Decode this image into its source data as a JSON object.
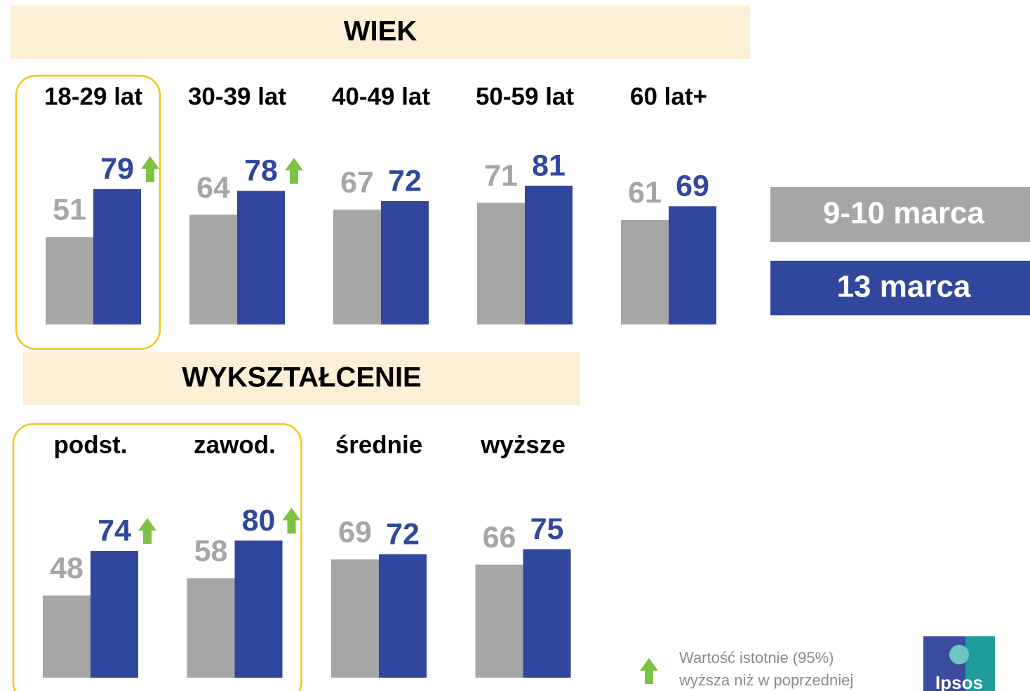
{
  "chart_data": [
    {
      "type": "bar",
      "title": "WIEK",
      "categories": [
        "18-29 lat",
        "30-39 lat",
        "40-49 lat",
        "50-59 lat",
        "60 lat+"
      ],
      "series": [
        {
          "name": "9-10 marca",
          "color": "#a6a6a6",
          "values": [
            51,
            64,
            67,
            71,
            61
          ]
        },
        {
          "name": "13 marca",
          "color": "#31479e",
          "values": [
            79,
            78,
            72,
            81,
            69
          ],
          "significant": [
            true,
            true,
            false,
            false,
            false
          ]
        }
      ],
      "highlight": [
        true,
        false,
        false,
        false,
        false
      ]
    },
    {
      "type": "bar",
      "title": "WYKSZTAŁCENIE",
      "categories": [
        "podst.",
        "zawod.",
        "średnie",
        "wyższe"
      ],
      "series": [
        {
          "color": "#a6a6a6",
          "values": [
            48,
            58,
            69,
            66
          ]
        },
        {
          "color": "#31479e",
          "values": [
            74,
            80,
            72,
            75
          ],
          "significant": [
            true,
            true,
            false,
            false
          ]
        }
      ],
      "highlight": [
        true,
        true,
        false,
        false
      ]
    }
  ],
  "header_color": "#fcefd6",
  "highlight_color": "#f5c518",
  "significance_color": "#7dc242",
  "note": [
    "Wartość istotnie (95%)",
    "wyższa niż w poprzedniej"
  ],
  "logo": "Ipsos"
}
